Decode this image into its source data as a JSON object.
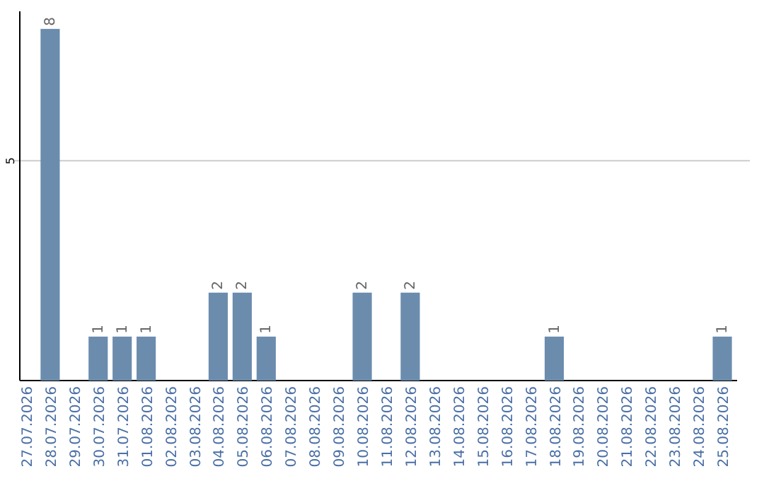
{
  "chart_data": {
    "type": "bar",
    "categories": [
      "27.07.2026",
      "28.07.2026",
      "29.07.2026",
      "30.07.2026",
      "31.07.2026",
      "01.08.2026",
      "02.08.2026",
      "03.08.2026",
      "04.08.2026",
      "05.08.2026",
      "06.08.2026",
      "07.08.2026",
      "08.08.2026",
      "09.08.2026",
      "10.08.2026",
      "11.08.2026",
      "12.08.2026",
      "13.08.2026",
      "14.08.2026",
      "15.08.2026",
      "16.08.2026",
      "17.08.2026",
      "18.08.2026",
      "19.08.2026",
      "20.08.2026",
      "21.08.2026",
      "22.08.2026",
      "23.08.2026",
      "24.08.2026",
      "25.08.2026"
    ],
    "values": [
      0,
      8,
      0,
      1,
      1,
      1,
      0,
      0,
      2,
      2,
      1,
      0,
      0,
      0,
      2,
      0,
      2,
      0,
      0,
      0,
      0,
      0,
      1,
      0,
      0,
      0,
      0,
      0,
      0,
      1
    ],
    "value_labels": [
      null,
      "8",
      null,
      "1",
      "1",
      "1",
      null,
      null,
      "2",
      "2",
      "1",
      null,
      null,
      null,
      "2",
      null,
      "2",
      null,
      null,
      null,
      null,
      null,
      "1",
      null,
      null,
      null,
      null,
      null,
      null,
      "1"
    ],
    "color": "#6b8cad",
    "ylim": [
      0,
      8.4
    ],
    "yticks": [
      5
    ],
    "grid": "y"
  }
}
